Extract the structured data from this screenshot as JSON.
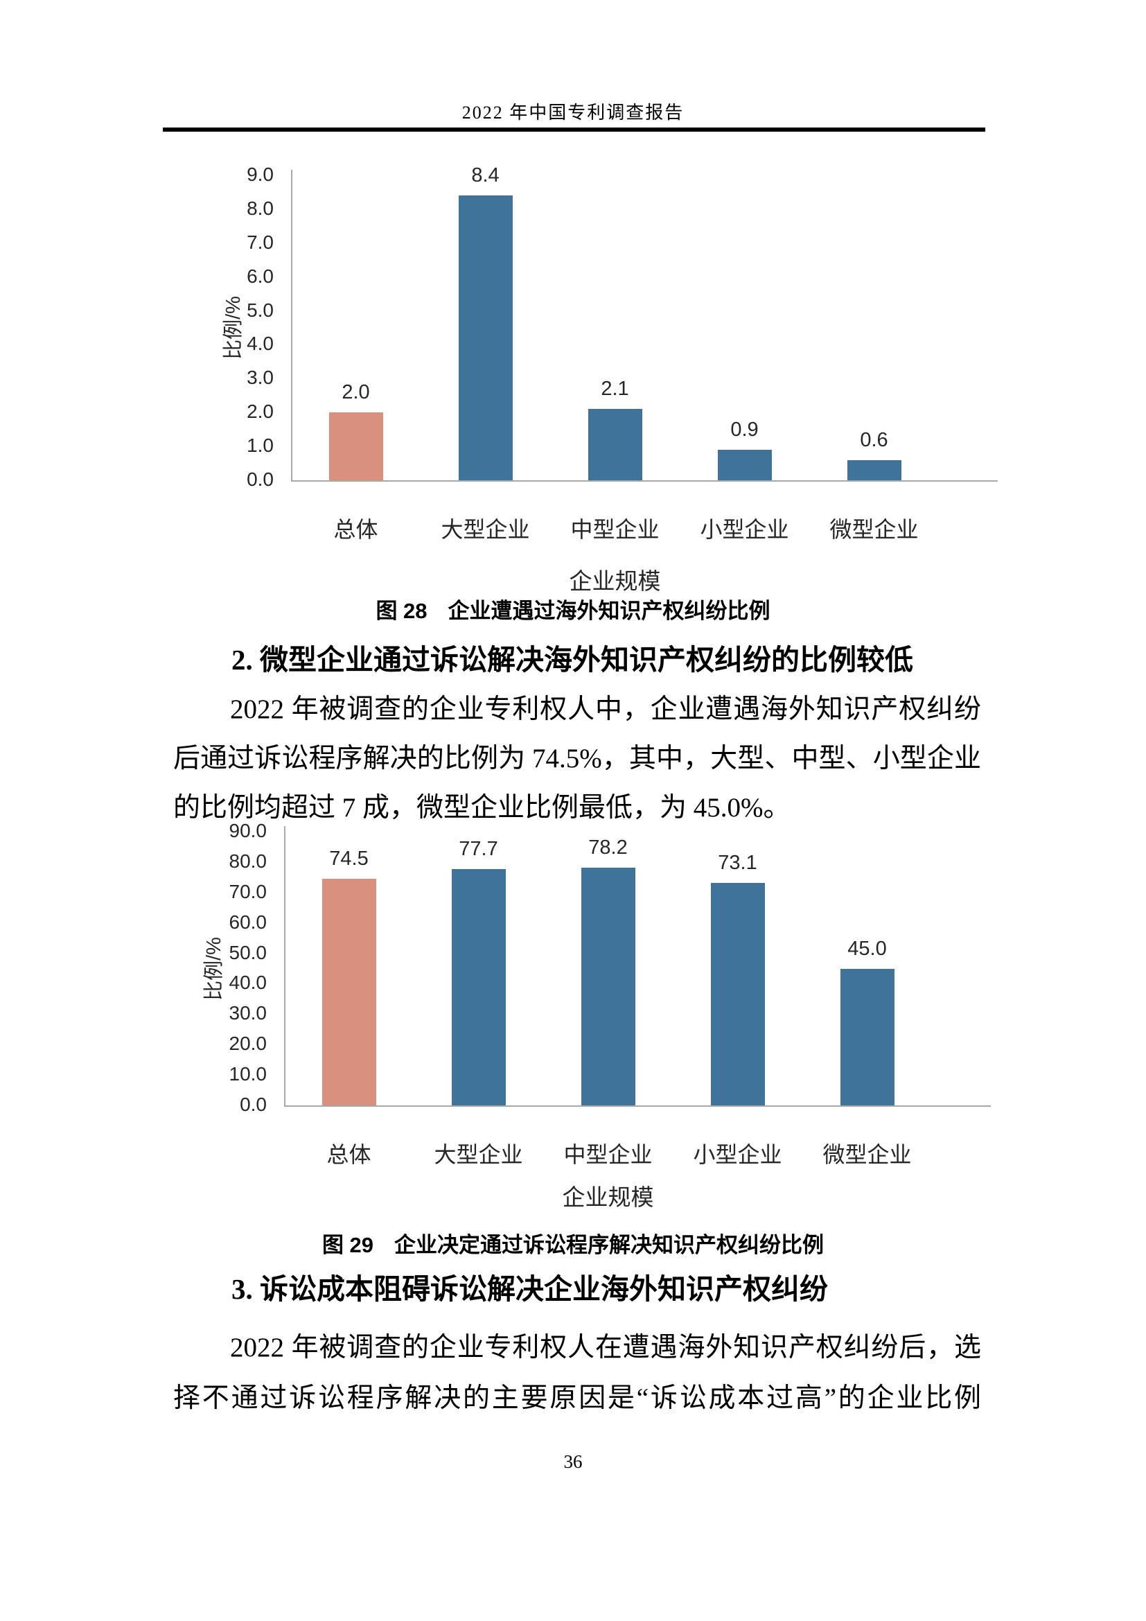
{
  "page": {
    "header": {
      "title": "2022 年中国专利调查报告"
    },
    "footer": {
      "page_number": "36"
    }
  },
  "figures": {
    "fig28": {
      "tag": "图 28",
      "title": "企业遭遇过海外知识产权纠纷比例"
    },
    "fig29": {
      "tag": "图 29",
      "title": "企业决定通过诉讼程序解决知识产权纠纷比例"
    }
  },
  "sections": {
    "s2": {
      "heading": "2. 微型企业通过诉讼解决海外知识产权纠纷的比例较低",
      "lines": [
        "2022 年被调查的企业专利权人中，企业遭遇海外知识产权纠纷",
        "后通过诉讼程序解决的比例为 74.5%，其中，大型、中型、小型企业",
        "的比例均超过 7 成，微型企业比例最低，为 45.0%。"
      ]
    },
    "s3": {
      "heading": "3. 诉讼成本阻碍诉讼解决企业海外知识产权纠纷",
      "lines": [
        "2022 年被调查的企业专利权人在遭遇海外知识产权纠纷后，选",
        "择不通过诉讼程序解决的主要原因是“诉讼成本过高”的企业比例"
      ]
    }
  },
  "colors": {
    "accent_bar": "#D9907F",
    "primary_bar": "#40739A",
    "axis_line": "#A8A8A8",
    "header_rule": "#000000"
  },
  "chart_data": [
    {
      "type": "bar",
      "caption": "图 28　企业遭遇过海外知识产权纠纷比例",
      "categories": [
        "总体",
        "大型企业",
        "中型企业",
        "小型企业",
        "微型企业"
      ],
      "values": [
        2.0,
        8.4,
        2.1,
        0.9,
        0.6
      ],
      "value_labels": [
        "2.0",
        "8.4",
        "2.1",
        "0.9",
        "0.6"
      ],
      "xlabel": "企业规模",
      "ylabel": "比例/%",
      "ylim": [
        0,
        9
      ],
      "ytick_step": 1.0,
      "ytick_labels_desc": [
        "9.0",
        "8.0",
        "7.0",
        "6.0",
        "5.0",
        "4.0",
        "3.0",
        "2.0",
        "1.0",
        "0.0"
      ],
      "grid": false,
      "legend": null,
      "bar_colors": [
        "#D9907F",
        "#40739A",
        "#40739A",
        "#40739A",
        "#40739A"
      ]
    },
    {
      "type": "bar",
      "caption": "图 29　企业决定通过诉讼程序解决知识产权纠纷比例",
      "categories": [
        "总体",
        "大型企业",
        "中型企业",
        "小型企业",
        "微型企业"
      ],
      "values": [
        74.5,
        77.7,
        78.2,
        73.1,
        45.0
      ],
      "value_labels": [
        "74.5",
        "77.7",
        "78.2",
        "73.1",
        "45.0"
      ],
      "xlabel": "企业规模",
      "ylabel": "比例/%",
      "ylim": [
        0,
        90
      ],
      "ytick_step": 10.0,
      "ytick_labels_desc": [
        "90.0",
        "80.0",
        "70.0",
        "60.0",
        "50.0",
        "40.0",
        "30.0",
        "20.0",
        "10.0",
        "0.0"
      ],
      "grid": false,
      "legend": null,
      "bar_colors": [
        "#D9907F",
        "#40739A",
        "#40739A",
        "#40739A",
        "#40739A"
      ]
    }
  ]
}
